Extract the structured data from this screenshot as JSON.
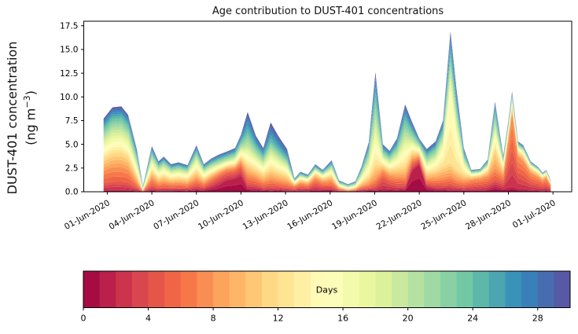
{
  "chart_data": {
    "type": "area",
    "title": "Age contribution to DUST-401 concentrations",
    "ylabel_line1": "DUST-401 concentration",
    "ylabel_line2_prefix": "(ng m",
    "ylabel_superscript": "−3",
    "ylabel_line2_suffix": ")",
    "background": "#ffffff",
    "axes_color": "#000000",
    "ylim": [
      0.0,
      17.94
    ],
    "yticks": {
      "values": [
        0.0,
        2.5,
        5.0,
        7.5,
        10.0,
        12.5,
        15.0,
        17.5
      ],
      "labels": [
        "0.0",
        "2.5",
        "5.0",
        "7.5",
        "10.0",
        "12.5",
        "15.0",
        "17.5"
      ]
    },
    "xticks": {
      "day_offsets": [
        0,
        3,
        6,
        9,
        12,
        15,
        18,
        21,
        24,
        27,
        30
      ],
      "labels": [
        "01-Jun-2020",
        "04-Jun-2020",
        "07-Jun-2020",
        "10-Jun-2020",
        "13-Jun-2020",
        "16-Jun-2020",
        "19-Jun-2020",
        "22-Jun-2020",
        "25-Jun-2020",
        "28-Jun-2020",
        "01-Jul-2020"
      ]
    },
    "stack_note": "Stacked area of DUST-401 concentration by particle age (0-30 days, 30 one-day bands, Spectral colormap, youngest=red at bottom, oldest=blue-purple on top). Each point lists t (days since 01-Jun-2020), total concentration (ng/m3) and cumulative fraction of the total below age boundaries.",
    "age_boundaries": [
      0,
      2,
      5,
      8,
      12,
      16,
      20,
      24,
      27,
      30
    ],
    "points": [
      {
        "t": -0.25,
        "total": 7.7,
        "cum": [
          0.025,
          0.12,
          0.29,
          0.46,
          0.59,
          0.73,
          0.86,
          0.94
        ]
      },
      {
        "t": 0.35,
        "total": 8.9,
        "cum": [
          0.025,
          0.12,
          0.29,
          0.46,
          0.59,
          0.73,
          0.86,
          0.94
        ]
      },
      {
        "t": 0.95,
        "total": 9.0,
        "cum": [
          0.025,
          0.12,
          0.29,
          0.46,
          0.59,
          0.73,
          0.86,
          0.94
        ]
      },
      {
        "t": 1.4,
        "total": 8.1,
        "cum": [
          0.025,
          0.12,
          0.29,
          0.46,
          0.59,
          0.73,
          0.86,
          0.94
        ]
      },
      {
        "t": 2.0,
        "total": 4.4,
        "cum": [
          0.03,
          0.1,
          0.22,
          0.38,
          0.54,
          0.68,
          0.83,
          0.93
        ]
      },
      {
        "t": 2.4,
        "total": 0.6,
        "cum": [
          0.03,
          0.08,
          0.15,
          0.28,
          0.45,
          0.63,
          0.82,
          0.93
        ]
      },
      {
        "t": 3.0,
        "total": 4.8,
        "cum": [
          0.04,
          0.14,
          0.3,
          0.46,
          0.6,
          0.73,
          0.86,
          0.94
        ]
      },
      {
        "t": 3.45,
        "total": 3.2,
        "cum": [
          0.04,
          0.13,
          0.28,
          0.45,
          0.6,
          0.74,
          0.87,
          0.94
        ]
      },
      {
        "t": 3.8,
        "total": 3.7,
        "cum": [
          0.04,
          0.13,
          0.28,
          0.45,
          0.6,
          0.74,
          0.87,
          0.94
        ]
      },
      {
        "t": 4.3,
        "total": 2.9,
        "cum": [
          0.05,
          0.15,
          0.3,
          0.47,
          0.61,
          0.74,
          0.87,
          0.94
        ]
      },
      {
        "t": 4.8,
        "total": 3.1,
        "cum": [
          0.05,
          0.15,
          0.3,
          0.47,
          0.61,
          0.74,
          0.87,
          0.94
        ]
      },
      {
        "t": 5.4,
        "total": 2.8,
        "cum": [
          0.05,
          0.15,
          0.3,
          0.47,
          0.61,
          0.74,
          0.87,
          0.94
        ]
      },
      {
        "t": 6.0,
        "total": 4.9,
        "cum": [
          0.05,
          0.15,
          0.28,
          0.44,
          0.59,
          0.73,
          0.86,
          0.94
        ]
      },
      {
        "t": 6.5,
        "total": 2.9,
        "cum": [
          0.07,
          0.18,
          0.32,
          0.48,
          0.62,
          0.75,
          0.87,
          0.95
        ]
      },
      {
        "t": 7.0,
        "total": 3.5,
        "cum": [
          0.12,
          0.28,
          0.42,
          0.55,
          0.65,
          0.76,
          0.87,
          0.95
        ]
      },
      {
        "t": 7.5,
        "total": 3.9,
        "cum": [
          0.18,
          0.38,
          0.5,
          0.6,
          0.68,
          0.76,
          0.87,
          0.95
        ]
      },
      {
        "t": 8.0,
        "total": 4.2,
        "cum": [
          0.28,
          0.45,
          0.56,
          0.64,
          0.71,
          0.78,
          0.88,
          0.95
        ]
      },
      {
        "t": 8.6,
        "total": 4.6,
        "cum": [
          0.3,
          0.45,
          0.55,
          0.63,
          0.7,
          0.78,
          0.88,
          0.95
        ]
      },
      {
        "t": 9.0,
        "total": 6.0,
        "cum": [
          0.28,
          0.42,
          0.52,
          0.61,
          0.69,
          0.77,
          0.87,
          0.95
        ]
      },
      {
        "t": 9.45,
        "total": 8.4,
        "cum": [
          0.04,
          0.12,
          0.22,
          0.34,
          0.46,
          0.58,
          0.74,
          0.88
        ]
      },
      {
        "t": 10.0,
        "total": 5.9,
        "cum": [
          0.05,
          0.14,
          0.26,
          0.4,
          0.53,
          0.66,
          0.8,
          0.91
        ]
      },
      {
        "t": 10.5,
        "total": 4.6,
        "cum": [
          0.04,
          0.12,
          0.24,
          0.4,
          0.54,
          0.67,
          0.81,
          0.92
        ]
      },
      {
        "t": 11.0,
        "total": 7.3,
        "cum": [
          0.02,
          0.09,
          0.19,
          0.33,
          0.47,
          0.6,
          0.72,
          0.87
        ]
      },
      {
        "t": 11.5,
        "total": 5.9,
        "cum": [
          0.03,
          0.1,
          0.2,
          0.35,
          0.49,
          0.62,
          0.75,
          0.88
        ]
      },
      {
        "t": 12.1,
        "total": 4.5,
        "cum": [
          0.03,
          0.1,
          0.22,
          0.38,
          0.52,
          0.64,
          0.76,
          0.88
        ]
      },
      {
        "t": 12.6,
        "total": 1.4,
        "cum": [
          0.06,
          0.25,
          0.45,
          0.6,
          0.7,
          0.78,
          0.87,
          0.94
        ]
      },
      {
        "t": 13.0,
        "total": 2.1,
        "cum": [
          0.07,
          0.25,
          0.44,
          0.6,
          0.71,
          0.79,
          0.88,
          0.95
        ]
      },
      {
        "t": 13.5,
        "total": 1.8,
        "cum": [
          0.07,
          0.25,
          0.44,
          0.6,
          0.71,
          0.79,
          0.88,
          0.95
        ]
      },
      {
        "t": 14.0,
        "total": 2.9,
        "cum": [
          0.08,
          0.3,
          0.5,
          0.65,
          0.74,
          0.81,
          0.89,
          0.95
        ]
      },
      {
        "t": 14.5,
        "total": 2.3,
        "cum": [
          0.07,
          0.26,
          0.46,
          0.62,
          0.72,
          0.8,
          0.89,
          0.95
        ]
      },
      {
        "t": 15.1,
        "total": 3.3,
        "cum": [
          0.05,
          0.18,
          0.35,
          0.52,
          0.65,
          0.76,
          0.87,
          0.94
        ]
      },
      {
        "t": 15.6,
        "total": 1.2,
        "cum": [
          0.05,
          0.15,
          0.3,
          0.45,
          0.58,
          0.7,
          0.84,
          0.93
        ]
      },
      {
        "t": 16.2,
        "total": 0.8,
        "cum": [
          0.04,
          0.1,
          0.18,
          0.32,
          0.48,
          0.64,
          0.82,
          0.93
        ]
      },
      {
        "t": 16.7,
        "total": 1.1,
        "cum": [
          0.06,
          0.14,
          0.24,
          0.38,
          0.52,
          0.67,
          0.83,
          0.93
        ]
      },
      {
        "t": 17.1,
        "total": 2.6,
        "cum": [
          0.05,
          0.12,
          0.22,
          0.36,
          0.52,
          0.68,
          0.84,
          0.93
        ]
      },
      {
        "t": 17.6,
        "total": 5.2,
        "cum": [
          0.03,
          0.08,
          0.16,
          0.3,
          0.48,
          0.66,
          0.83,
          0.93
        ]
      },
      {
        "t": 18.05,
        "total": 12.6,
        "cum": [
          0.015,
          0.05,
          0.11,
          0.23,
          0.41,
          0.6,
          0.79,
          0.92
        ]
      },
      {
        "t": 18.55,
        "total": 5.0,
        "cum": [
          0.06,
          0.3,
          0.45,
          0.56,
          0.66,
          0.76,
          0.87,
          0.95
        ]
      },
      {
        "t": 19.0,
        "total": 4.3,
        "cum": [
          0.06,
          0.24,
          0.4,
          0.54,
          0.65,
          0.76,
          0.87,
          0.95
        ]
      },
      {
        "t": 19.5,
        "total": 5.6,
        "cum": [
          0.04,
          0.15,
          0.28,
          0.44,
          0.58,
          0.71,
          0.85,
          0.94
        ]
      },
      {
        "t": 20.05,
        "total": 9.2,
        "cum": [
          0.03,
          0.09,
          0.17,
          0.3,
          0.47,
          0.64,
          0.82,
          0.93
        ]
      },
      {
        "t": 20.5,
        "total": 7.4,
        "cum": [
          0.3,
          0.38,
          0.46,
          0.56,
          0.65,
          0.74,
          0.86,
          0.94
        ]
      },
      {
        "t": 21.0,
        "total": 5.6,
        "cum": [
          0.52,
          0.6,
          0.66,
          0.73,
          0.79,
          0.85,
          0.92,
          0.97
        ]
      },
      {
        "t": 21.5,
        "total": 4.5,
        "cum": [
          0.11,
          0.2,
          0.3,
          0.44,
          0.57,
          0.7,
          0.85,
          0.94
        ]
      },
      {
        "t": 22.1,
        "total": 5.3,
        "cum": [
          0.05,
          0.14,
          0.26,
          0.42,
          0.58,
          0.72,
          0.86,
          0.94
        ]
      },
      {
        "t": 22.6,
        "total": 7.5,
        "cum": [
          0.035,
          0.1,
          0.2,
          0.36,
          0.6,
          0.74,
          0.86,
          0.95
        ]
      },
      {
        "t": 23.1,
        "total": 16.9,
        "cum": [
          0.012,
          0.05,
          0.1,
          0.18,
          0.63,
          0.75,
          0.85,
          0.94
        ]
      },
      {
        "t": 23.5,
        "total": 10.9,
        "cum": [
          0.02,
          0.06,
          0.12,
          0.22,
          0.55,
          0.7,
          0.83,
          0.93
        ]
      },
      {
        "t": 24.0,
        "total": 4.6,
        "cum": [
          0.04,
          0.12,
          0.24,
          0.4,
          0.58,
          0.72,
          0.85,
          0.94
        ]
      },
      {
        "t": 24.5,
        "total": 2.3,
        "cum": [
          0.08,
          0.3,
          0.55,
          0.7,
          0.79,
          0.85,
          0.92,
          0.97
        ]
      },
      {
        "t": 25.1,
        "total": 2.4,
        "cum": [
          0.08,
          0.32,
          0.58,
          0.72,
          0.8,
          0.86,
          0.93,
          0.97
        ]
      },
      {
        "t": 25.6,
        "total": 3.4,
        "cum": [
          0.07,
          0.26,
          0.48,
          0.64,
          0.74,
          0.82,
          0.9,
          0.96
        ]
      },
      {
        "t": 26.1,
        "total": 9.5,
        "cum": [
          0.06,
          0.14,
          0.26,
          0.48,
          0.62,
          0.74,
          0.87,
          0.95
        ]
      },
      {
        "t": 26.65,
        "total": 3.8,
        "cum": [
          0.08,
          0.25,
          0.45,
          0.62,
          0.73,
          0.81,
          0.9,
          0.96
        ]
      },
      {
        "t": 27.0,
        "total": 7.5,
        "cum": [
          0.06,
          0.4,
          0.72,
          0.82,
          0.87,
          0.91,
          0.95,
          0.98
        ]
      },
      {
        "t": 27.25,
        "total": 10.6,
        "cum": [
          0.05,
          0.42,
          0.78,
          0.85,
          0.89,
          0.92,
          0.96,
          0.98
        ]
      },
      {
        "t": 27.65,
        "total": 5.3,
        "cum": [
          0.06,
          0.38,
          0.7,
          0.8,
          0.86,
          0.9,
          0.95,
          0.98
        ]
      },
      {
        "t": 28.0,
        "total": 4.9,
        "cum": [
          0.06,
          0.35,
          0.66,
          0.78,
          0.85,
          0.9,
          0.94,
          0.97
        ]
      },
      {
        "t": 28.5,
        "total": 3.2,
        "cum": [
          0.06,
          0.33,
          0.62,
          0.76,
          0.84,
          0.89,
          0.94,
          0.97
        ]
      },
      {
        "t": 29.0,
        "total": 2.6,
        "cum": [
          0.06,
          0.32,
          0.6,
          0.75,
          0.83,
          0.89,
          0.94,
          0.97
        ]
      },
      {
        "t": 29.3,
        "total": 2.0,
        "cum": [
          0.06,
          0.32,
          0.6,
          0.75,
          0.83,
          0.89,
          0.94,
          0.97
        ]
      },
      {
        "t": 29.55,
        "total": 2.3,
        "cum": [
          0.07,
          0.35,
          0.64,
          0.78,
          0.85,
          0.9,
          0.95,
          0.98
        ]
      },
      {
        "t": 29.85,
        "total": 1.2,
        "cum": [
          0.06,
          0.3,
          0.56,
          0.72,
          0.81,
          0.88,
          0.94,
          0.97
        ]
      }
    ],
    "colorbar": {
      "label": "Days",
      "min": 0,
      "max": 30,
      "n_cells": 30,
      "tick_values": [
        0,
        4,
        8,
        12,
        16,
        20,
        24,
        28
      ],
      "tick_labels": [
        "0",
        "4",
        "8",
        "12",
        "16",
        "20",
        "24",
        "28"
      ],
      "colormap_name_hint": "spectral",
      "colors": [
        "#9e0142",
        "#d53e4f",
        "#f46d43",
        "#fdae61",
        "#fee08b",
        "#ffffbf",
        "#e6f598",
        "#abdda4",
        "#66c2a5",
        "#3288bd",
        "#5e4fa2"
      ]
    }
  }
}
